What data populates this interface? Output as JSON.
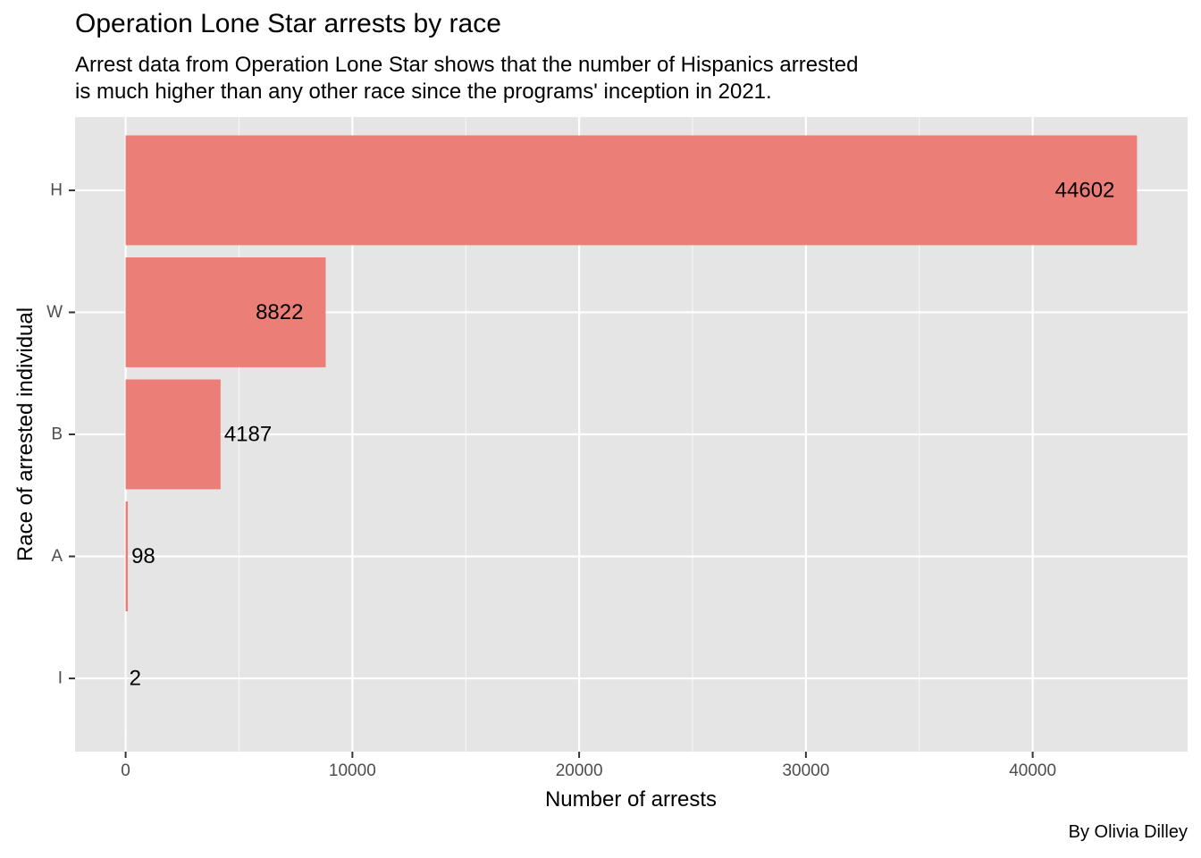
{
  "chart_data": {
    "type": "bar",
    "orientation": "horizontal",
    "title": "Operation Lone Star arrests by race",
    "subtitle_lines": [
      "Arrest data from Operation Lone Star shows that the number of Hispanics arrested",
      "is much higher than any other race since the programs' inception in 2021."
    ],
    "caption": "By Olivia Dilley",
    "xlabel": "Number of arrests",
    "ylabel": "Race of arrested individual",
    "categories": [
      "H",
      "W",
      "B",
      "A",
      "I"
    ],
    "values": [
      44602,
      8822,
      4187,
      98,
      2
    ],
    "data_labels": [
      "44602",
      "8822",
      "4187",
      "98",
      "2"
    ],
    "x_ticks": [
      0,
      10000,
      20000,
      30000,
      40000
    ],
    "x_tick_labels": [
      "0",
      "10000",
      "20000",
      "30000",
      "40000"
    ],
    "xlim": [
      -2230,
      46832
    ],
    "bar_color": "#EB7E77",
    "panel_background": "#E5E5E5",
    "grid": true,
    "legend": "none"
  }
}
